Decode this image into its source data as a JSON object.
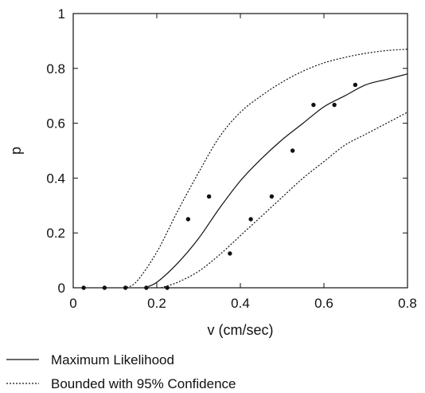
{
  "chart_data": {
    "type": "scatter",
    "xlabel": "v (cm/sec)",
    "ylabel": "p",
    "xlim": [
      0,
      0.8
    ],
    "ylim": [
      0,
      1
    ],
    "x_ticks": [
      0,
      0.2,
      0.4,
      0.6,
      0.8
    ],
    "y_ticks": [
      0,
      0.2,
      0.4,
      0.6,
      0.8,
      1
    ],
    "x_tick_labels": [
      "0",
      "0.2",
      "0.4",
      "0.6",
      "0.8"
    ],
    "y_tick_labels": [
      "0",
      "0.2",
      "0.4",
      "0.6",
      "0.8",
      "1"
    ],
    "grid": false,
    "legend_position": "bottom-left",
    "observed_points": {
      "x": [
        0.025,
        0.075,
        0.125,
        0.175,
        0.225,
        0.275,
        0.325,
        0.375,
        0.425,
        0.475,
        0.525,
        0.575,
        0.625,
        0.675
      ],
      "y": [
        0,
        0,
        0,
        0,
        0,
        0.25,
        0.333,
        0.125,
        0.25,
        0.333,
        0.5,
        0.667,
        0.667,
        0.74
      ]
    },
    "series": [
      {
        "name": "Maximum Likelihood",
        "style": "solid",
        "x": [
          0.17,
          0.2,
          0.25,
          0.3,
          0.35,
          0.4,
          0.45,
          0.5,
          0.55,
          0.6,
          0.65,
          0.7,
          0.75,
          0.8
        ],
        "y": [
          0,
          0.02,
          0.09,
          0.18,
          0.29,
          0.39,
          0.47,
          0.54,
          0.6,
          0.66,
          0.7,
          0.74,
          0.76,
          0.78
        ]
      },
      {
        "name": "Bounded with 95% Confidence",
        "style": "dotted",
        "x": [
          0.12,
          0.15,
          0.2,
          0.25,
          0.3,
          0.35,
          0.4,
          0.45,
          0.5,
          0.55,
          0.6,
          0.65,
          0.7,
          0.75,
          0.8
        ],
        "y": [
          0,
          0.02,
          0.13,
          0.28,
          0.42,
          0.55,
          0.64,
          0.7,
          0.75,
          0.79,
          0.82,
          0.84,
          0.855,
          0.865,
          0.87
        ]
      },
      {
        "name": "Bounded with 95% Confidence",
        "style": "dotted",
        "x": [
          0.21,
          0.25,
          0.3,
          0.35,
          0.4,
          0.45,
          0.5,
          0.55,
          0.6,
          0.65,
          0.7,
          0.75,
          0.8
        ],
        "y": [
          0,
          0.02,
          0.06,
          0.12,
          0.19,
          0.26,
          0.33,
          0.4,
          0.46,
          0.52,
          0.56,
          0.6,
          0.64
        ]
      }
    ],
    "legend": [
      {
        "label": "Maximum Likelihood",
        "style": "solid"
      },
      {
        "label": "Bounded with 95% Confidence",
        "style": "dotted"
      }
    ],
    "colors": {
      "line": "#111111",
      "point": "#111111",
      "background": "#ffffff"
    }
  }
}
